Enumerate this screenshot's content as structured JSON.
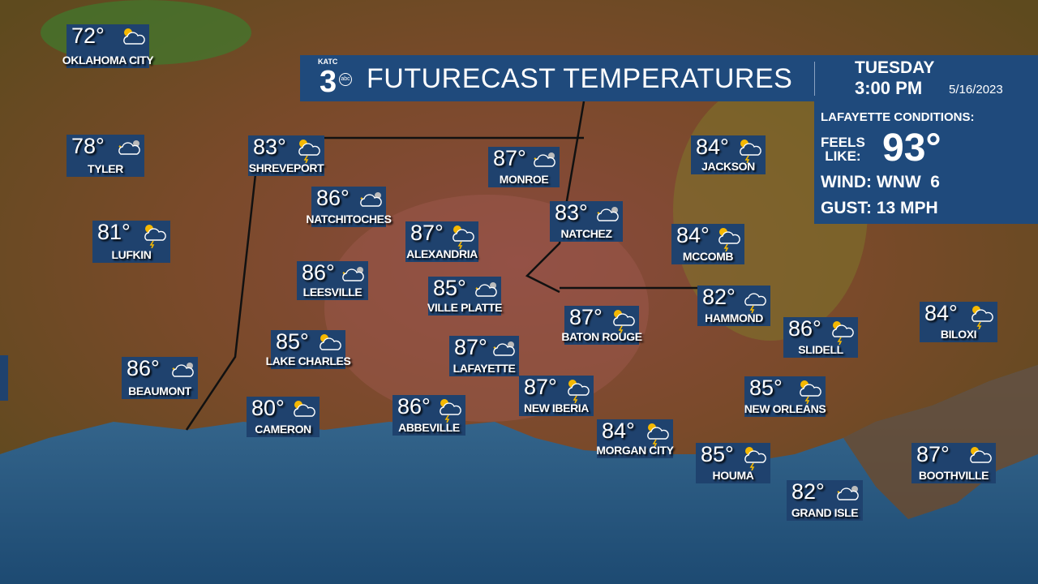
{
  "header": {
    "logo_text": "KATC",
    "logo_number": "3",
    "logo_network": "abc",
    "title": "FUTURECAST TEMPERATURES",
    "day": "TUESDAY",
    "time": "3:00 PM",
    "date": "5/16/2023"
  },
  "conditions": {
    "title": "LAFAYETTE CONDITIONS:",
    "feels_like_label_1": "FEELS",
    "feels_like_label_2": "LIKE:",
    "feels_like_value": "93°",
    "wind_label": "WIND:",
    "wind_value": "WNW  6",
    "gust_label": "GUST:",
    "gust_value": "13 MPH"
  },
  "colors": {
    "panel": "#1f4a7c",
    "city_box": "#1f426e",
    "gulf": "#2c5d86"
  },
  "cities": [
    {
      "name": "OKLAHOMA CITY",
      "temp": "72°",
      "icon": "partly-sunny-icon"
    },
    {
      "name": "TYLER",
      "temp": "78°",
      "icon": "mostly-cloudy-icon"
    },
    {
      "name": "SHREVEPORT",
      "temp": "83°",
      "icon": "sun-thunderstorm-icon"
    },
    {
      "name": "MONROE",
      "temp": "87°",
      "icon": "mostly-cloudy-icon"
    },
    {
      "name": "JACKSON",
      "temp": "84°",
      "icon": "sun-thunderstorm-icon"
    },
    {
      "name": "NATCHITOCHES",
      "temp": "86°",
      "icon": "mostly-cloudy-icon"
    },
    {
      "name": "LUFKIN",
      "temp": "81°",
      "icon": "sun-thunderstorm-icon"
    },
    {
      "name": "ALEXANDRIA",
      "temp": "87°",
      "icon": "sun-thunderstorm-icon"
    },
    {
      "name": "NATCHEZ",
      "temp": "83°",
      "icon": "mostly-cloudy-icon"
    },
    {
      "name": "MCCOMB",
      "temp": "84°",
      "icon": "sun-thunderstorm-icon"
    },
    {
      "name": "LEESVILLE",
      "temp": "86°",
      "icon": "mostly-cloudy-icon"
    },
    {
      "name": "VILLE PLATTE",
      "temp": "85°",
      "icon": "mostly-cloudy-icon"
    },
    {
      "name": "HAMMOND",
      "temp": "82°",
      "icon": "thunderstorm-icon"
    },
    {
      "name": "BATON ROUGE",
      "temp": "87°",
      "icon": "sun-thunderstorm-icon"
    },
    {
      "name": "BILOXI",
      "temp": "84°",
      "icon": "sun-thunderstorm-icon"
    },
    {
      "name": "SLIDELL",
      "temp": "86°",
      "icon": "sun-thunderstorm-icon"
    },
    {
      "name": "LAKE CHARLES",
      "temp": "85°",
      "icon": "partly-sunny-icon"
    },
    {
      "name": "LAFAYETTE",
      "temp": "87°",
      "icon": "mostly-cloudy-icon"
    },
    {
      "name": "BEAUMONT",
      "temp": "86°",
      "icon": "mostly-cloudy-icon"
    },
    {
      "name": "NEW IBERIA",
      "temp": "87°",
      "icon": "sun-thunderstorm-icon"
    },
    {
      "name": "NEW ORLEANS",
      "temp": "85°",
      "icon": "sun-thunderstorm-icon"
    },
    {
      "name": "CAMERON",
      "temp": "80°",
      "icon": "partly-sunny-icon"
    },
    {
      "name": "ABBEVILLE",
      "temp": "86°",
      "icon": "sun-thunderstorm-icon"
    },
    {
      "name": "MORGAN CITY",
      "temp": "84°",
      "icon": "sun-thunderstorm-icon"
    },
    {
      "name": "HOUMA",
      "temp": "85°",
      "icon": "sun-thunderstorm-icon"
    },
    {
      "name": "BOOTHVILLE",
      "temp": "87°",
      "icon": "partly-sunny-icon"
    },
    {
      "name": "GRAND ISLE",
      "temp": "82°",
      "icon": "mostly-cloudy-icon"
    }
  ]
}
